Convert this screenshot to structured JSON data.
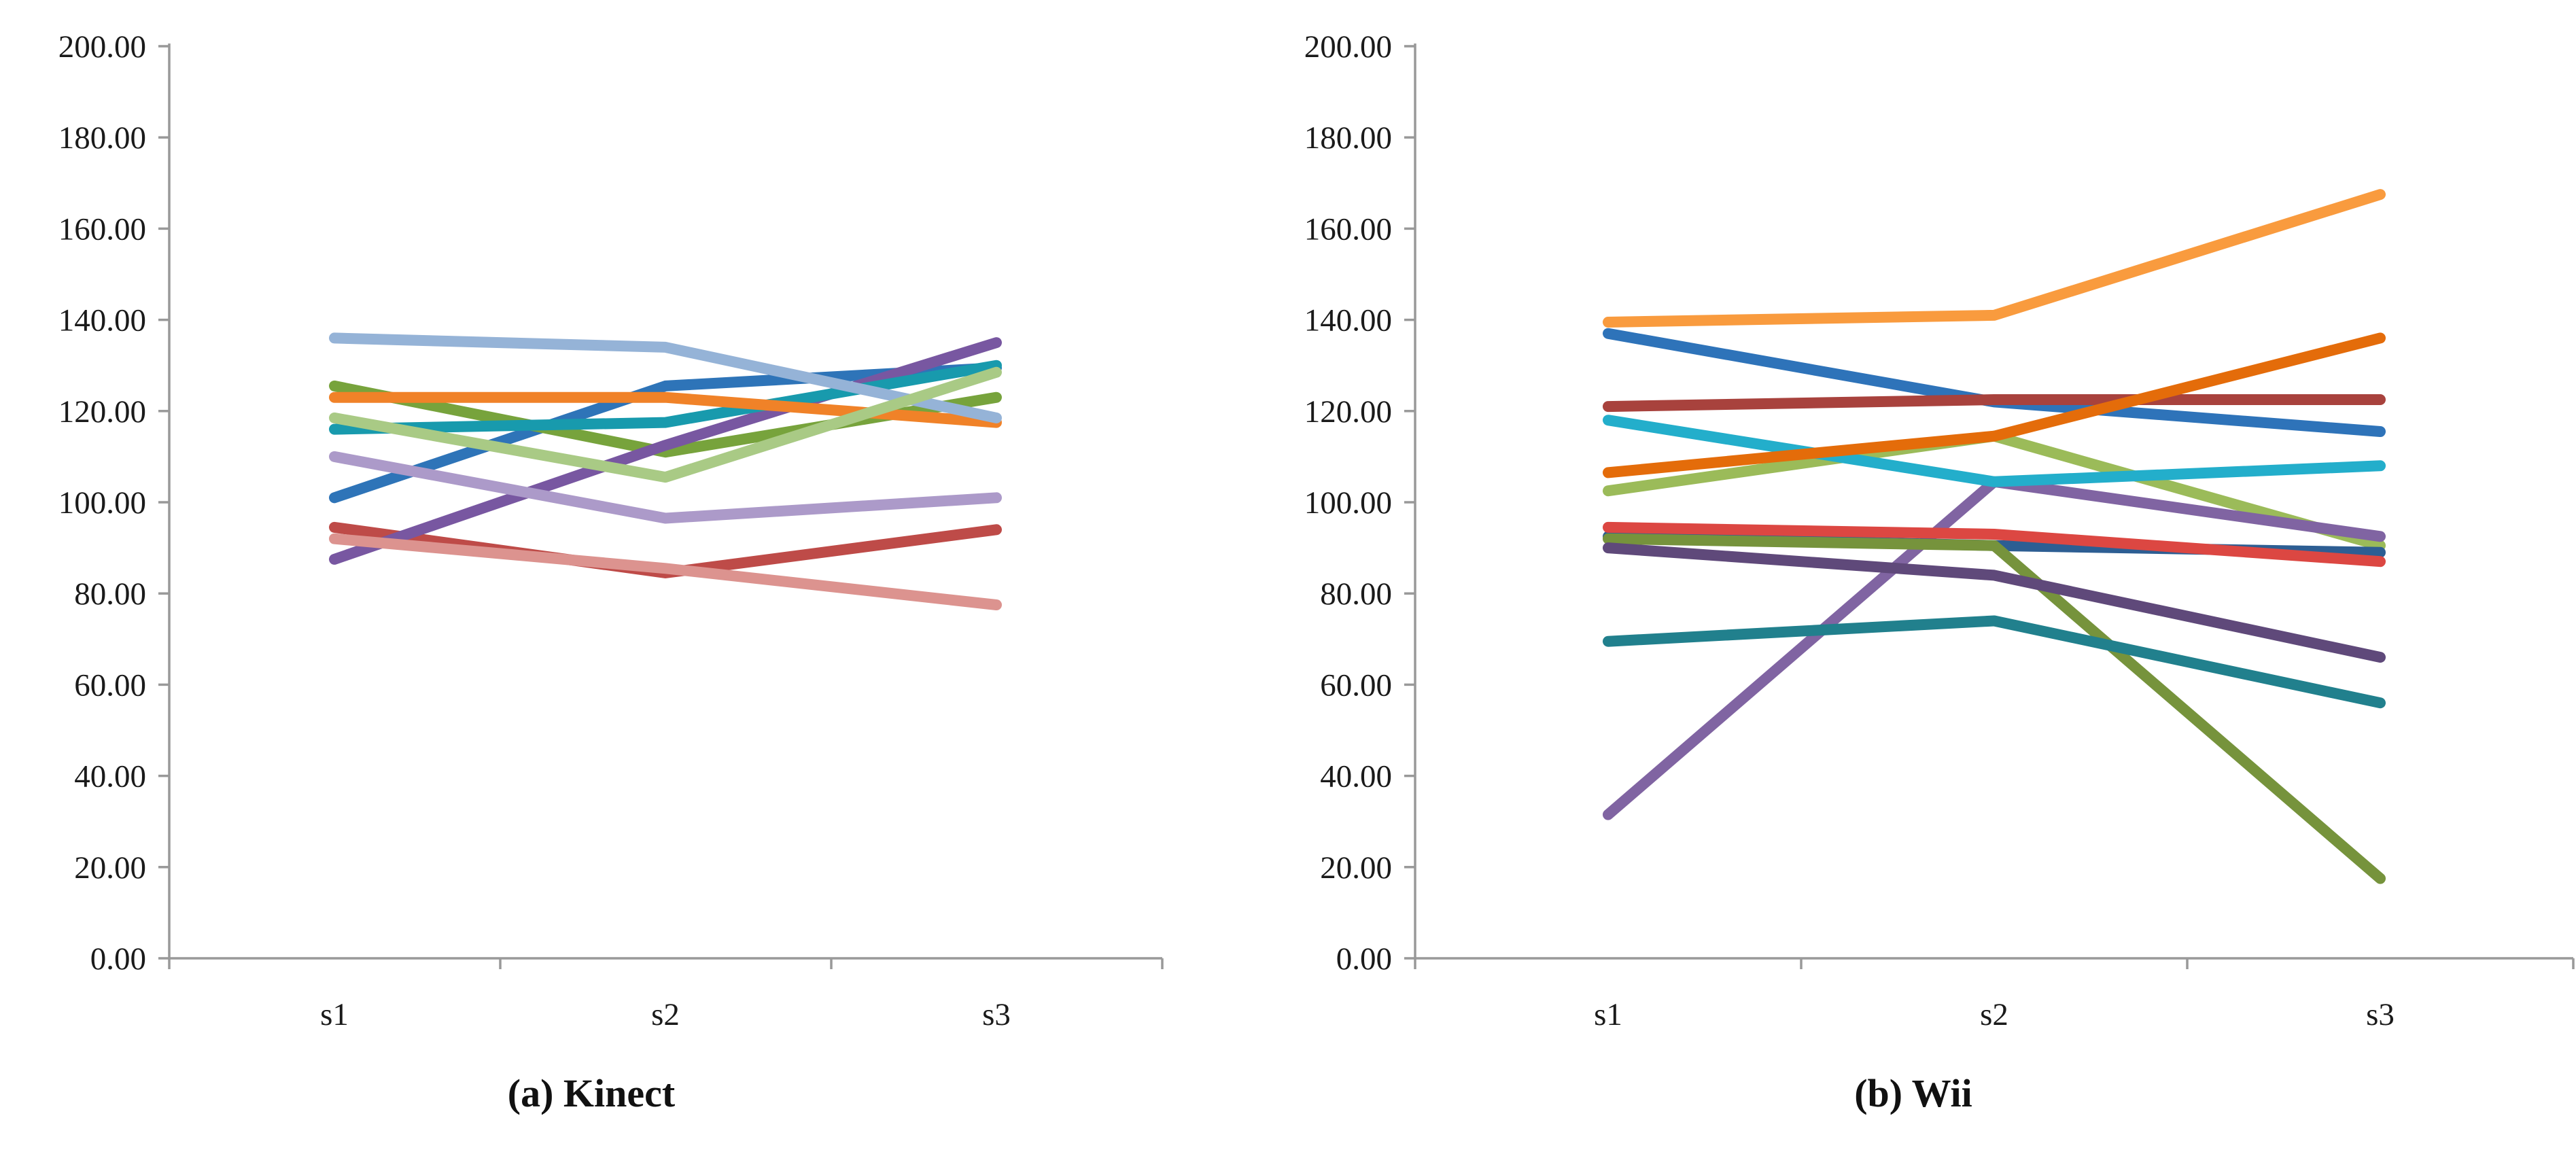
{
  "figure": {
    "description": "Two side-by-side multi-series line charts of per-participant values across three sessions",
    "background_color": "#ffffff",
    "axis_color": "#999999",
    "text_color": "#1a1a1a"
  },
  "chart_data": [
    {
      "type": "line",
      "title": "(a) Kinect",
      "caption": "(a) Kinect",
      "xlabel": "",
      "ylabel": "",
      "x_categories": [
        "s1",
        "s2",
        "s3"
      ],
      "y_tick_labels": [
        "0.00",
        "20.00",
        "40.00",
        "60.00",
        "80.00",
        "100.00",
        "120.00",
        "140.00",
        "160.00",
        "180.00",
        "200.00"
      ],
      "ylim": [
        0,
        200
      ],
      "y_tick_step": 20,
      "grid": false,
      "legend_position": "none",
      "series": [
        {
          "name": "blue",
          "color": "#2E74B8",
          "values": [
            101.0,
            125.5,
            129.5
          ]
        },
        {
          "name": "dark-red",
          "color": "#BE4B48",
          "values": [
            94.5,
            84.5,
            94.0
          ]
        },
        {
          "name": "olive-green",
          "color": "#77A33C",
          "values": [
            125.5,
            111.0,
            123.0
          ]
        },
        {
          "name": "purple",
          "color": "#7857A1",
          "values": [
            87.5,
            112.5,
            135.0
          ]
        },
        {
          "name": "teal",
          "color": "#189AAD",
          "values": [
            116.0,
            117.5,
            130.0
          ]
        },
        {
          "name": "orange",
          "color": "#F08228",
          "values": [
            123.0,
            123.0,
            117.5
          ]
        },
        {
          "name": "pale-blue",
          "color": "#95B3D7",
          "values": [
            136.0,
            134.0,
            118.5
          ]
        },
        {
          "name": "salmon",
          "color": "#DC938F",
          "values": [
            92.0,
            85.5,
            77.5
          ]
        },
        {
          "name": "light-green",
          "color": "#A9CA85",
          "values": [
            118.5,
            105.5,
            128.5
          ]
        },
        {
          "name": "lavender",
          "color": "#AC9AC9",
          "values": [
            110.0,
            96.5,
            101.0
          ]
        }
      ]
    },
    {
      "type": "line",
      "title": "(b) Wii",
      "caption": "(b) Wii",
      "xlabel": "",
      "ylabel": "",
      "x_categories": [
        "s1",
        "s2",
        "s3"
      ],
      "y_tick_labels": [
        "0.00",
        "20.00",
        "40.00",
        "60.00",
        "80.00",
        "100.00",
        "120.00",
        "140.00",
        "160.00",
        "180.00",
        "200.00"
      ],
      "ylim": [
        0,
        200
      ],
      "y_tick_step": 20,
      "grid": false,
      "legend_position": "none",
      "series": [
        {
          "name": "blue",
          "color": "#2E73B9",
          "values": [
            137.0,
            122.0,
            115.5
          ]
        },
        {
          "name": "maroon",
          "color": "#A8423D",
          "values": [
            121.0,
            122.5,
            122.5
          ]
        },
        {
          "name": "light-green",
          "color": "#9BBB59",
          "values": [
            102.5,
            114.5,
            90.5
          ]
        },
        {
          "name": "purple",
          "color": "#8064A2",
          "values": [
            31.5,
            104.5,
            92.5
          ]
        },
        {
          "name": "cyan",
          "color": "#23AECB",
          "values": [
            118.0,
            104.5,
            108.0
          ]
        },
        {
          "name": "orange",
          "color": "#F99B3E",
          "values": [
            139.5,
            141.0,
            167.5
          ]
        },
        {
          "name": "dark-blue",
          "color": "#2D5E93",
          "values": [
            92.5,
            90.5,
            89.0
          ]
        },
        {
          "name": "red",
          "color": "#DC4742",
          "values": [
            94.5,
            93.0,
            87.0
          ]
        },
        {
          "name": "olive-green",
          "color": "#76933C",
          "values": [
            92.0,
            90.5,
            17.5
          ]
        },
        {
          "name": "dark-purple",
          "color": "#5F497A",
          "values": [
            90.0,
            84.0,
            66.0
          ]
        },
        {
          "name": "dark-teal",
          "color": "#21808D",
          "values": [
            69.5,
            74.0,
            56.0
          ]
        },
        {
          "name": "dark-orange",
          "color": "#E46C0A",
          "values": [
            106.5,
            114.5,
            136.0
          ]
        }
      ]
    }
  ]
}
